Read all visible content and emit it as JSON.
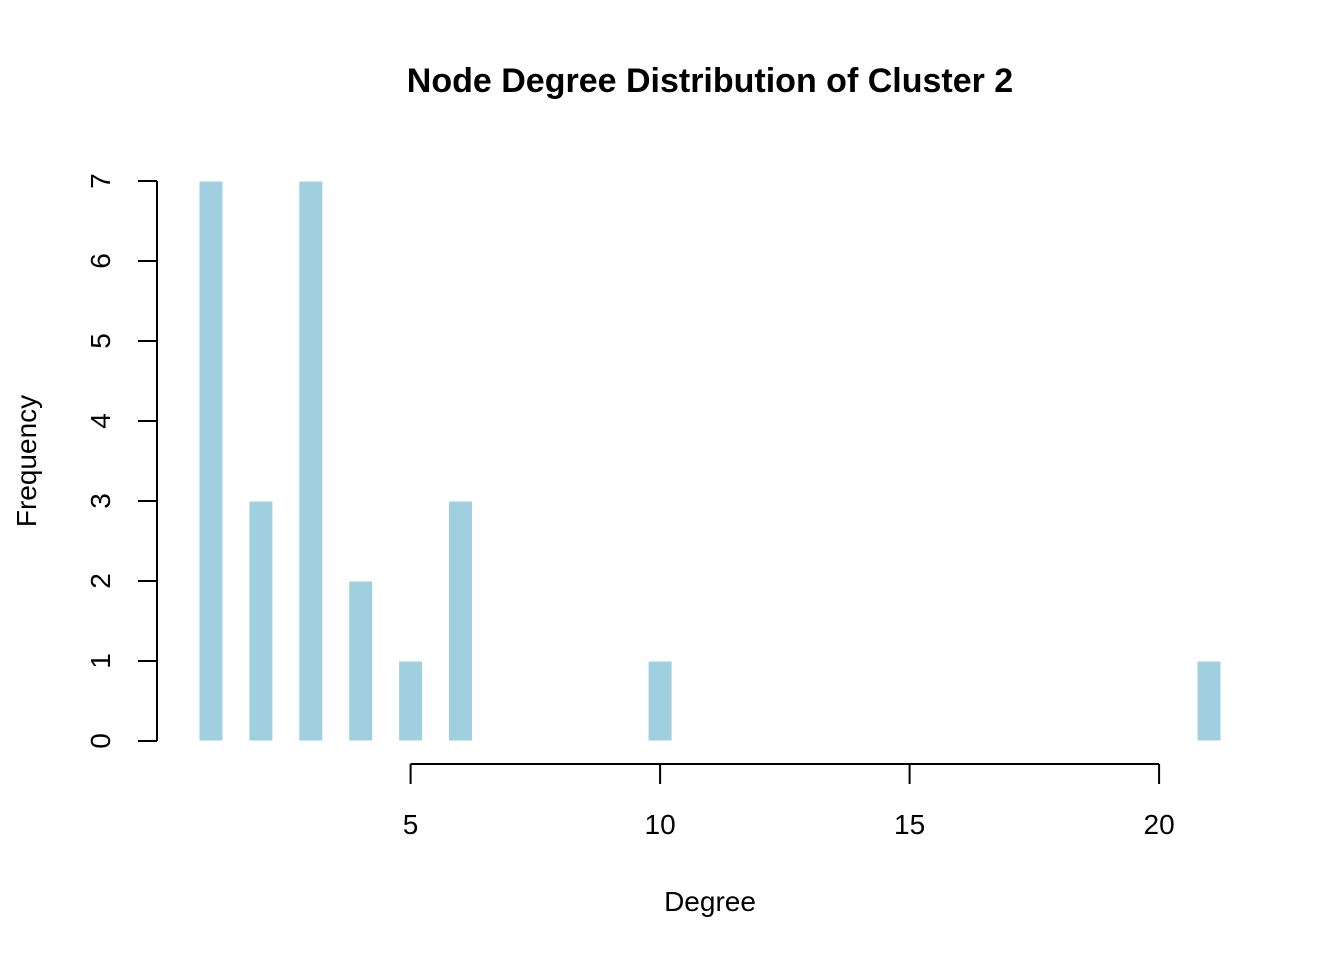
{
  "chart_data": {
    "type": "bar",
    "title": "Node Degree Distribution of Cluster 2",
    "xlabel": "Degree",
    "ylabel": "Frequency",
    "x": [
      1,
      2,
      3,
      4,
      5,
      6,
      10,
      21
    ],
    "values": [
      7,
      3,
      7,
      2,
      1,
      3,
      1,
      1
    ],
    "xlim": [
      1,
      21
    ],
    "ylim": [
      0,
      7
    ],
    "x_ticks": [
      5,
      10,
      15,
      20
    ],
    "y_ticks": [
      0,
      1,
      2,
      3,
      4,
      5,
      6,
      7
    ],
    "bar_color": "#a0cfe0",
    "grid": false,
    "legend": "none"
  }
}
